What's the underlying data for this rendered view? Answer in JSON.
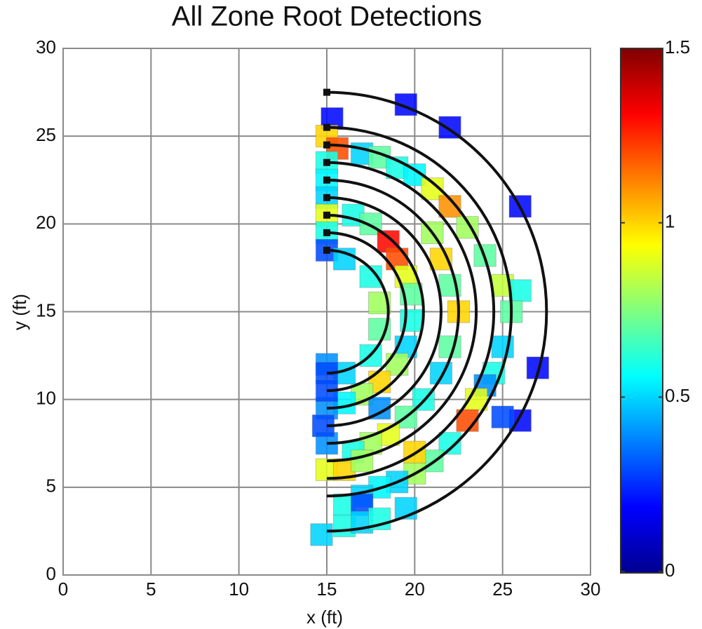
{
  "chart_data": {
    "type": "heatmap",
    "title": "All Zone Root Detections",
    "xlabel": "x (ft)",
    "ylabel": "y (ft)",
    "xlim": [
      0,
      30
    ],
    "xticks": [
      0,
      5,
      10,
      15,
      20,
      25,
      30
    ],
    "ylim": [
      0,
      30
    ],
    "yticks": [
      0,
      5,
      10,
      15,
      20,
      25,
      30
    ],
    "grid": true,
    "colorbar": {
      "lim": [
        0,
        1.5
      ],
      "ticks": [
        0,
        0.5,
        1,
        1.5
      ],
      "colormap": "jet"
    },
    "arcs": {
      "center": [
        15,
        15
      ],
      "radii": [
        3.5,
        4.5,
        5.5,
        6.5,
        7.5,
        8.5,
        9.5,
        10.5,
        12.5
      ],
      "color": "#111111"
    },
    "cells": [
      [
        15.3,
        26,
        0.2
      ],
      [
        19.5,
        26.8,
        0.2
      ],
      [
        22,
        25.5,
        0.2
      ],
      [
        26,
        21,
        0.2
      ],
      [
        27,
        11.8,
        0.2
      ],
      [
        26,
        8.8,
        0.2
      ],
      [
        15,
        25,
        1.0
      ],
      [
        15.6,
        24.3,
        1.2
      ],
      [
        15,
        23.5,
        0.6
      ],
      [
        15,
        22.5,
        0.55
      ],
      [
        15,
        21.5,
        0.5
      ],
      [
        15,
        20.5,
        0.9
      ],
      [
        15,
        19.5,
        0.6
      ],
      [
        15,
        18.5,
        0.3
      ],
      [
        17,
        24,
        0.5
      ],
      [
        18,
        23.8,
        0.7
      ],
      [
        19,
        23.2,
        0.6
      ],
      [
        20,
        22.8,
        0.55
      ],
      [
        21,
        22,
        0.9
      ],
      [
        22,
        21,
        1.1
      ],
      [
        23,
        19.8,
        0.8
      ],
      [
        24,
        18.2,
        0.7
      ],
      [
        25,
        16.5,
        0.85
      ],
      [
        26,
        16.2,
        0.6
      ],
      [
        25.5,
        15,
        0.7
      ],
      [
        25,
        13,
        0.5
      ],
      [
        24.5,
        11.5,
        0.6
      ],
      [
        24,
        10.8,
        0.4
      ],
      [
        23.5,
        10,
        0.9
      ],
      [
        23,
        8.8,
        1.2
      ],
      [
        25,
        9,
        0.3
      ],
      [
        22,
        7.5,
        0.6
      ],
      [
        21,
        6.5,
        0.7
      ],
      [
        20,
        5.8,
        0.8
      ],
      [
        19,
        5.3,
        0.5
      ],
      [
        18,
        5,
        0.55
      ],
      [
        17,
        4.5,
        0.5
      ],
      [
        16,
        4,
        0.6
      ],
      [
        17,
        4,
        0.3
      ],
      [
        16.5,
        20.5,
        0.6
      ],
      [
        17.5,
        20,
        0.7
      ],
      [
        18.5,
        19,
        1.3
      ],
      [
        19,
        18,
        1.2
      ],
      [
        19.5,
        17,
        0.9
      ],
      [
        19.8,
        16,
        0.7
      ],
      [
        19.8,
        14.5,
        0.6
      ],
      [
        19.5,
        13,
        0.5
      ],
      [
        19,
        12,
        0.8
      ],
      [
        18,
        11,
        1.0
      ],
      [
        17,
        10.3,
        0.8
      ],
      [
        16,
        9.8,
        0.55
      ],
      [
        15,
        9.5,
        0.4
      ],
      [
        16,
        18,
        0.5
      ],
      [
        17.5,
        17,
        0.6
      ],
      [
        18,
        15.5,
        0.8
      ],
      [
        18,
        14,
        0.7
      ],
      [
        17.5,
        12.5,
        0.6
      ],
      [
        16,
        11.5,
        0.5
      ],
      [
        15,
        12,
        0.4
      ],
      [
        15,
        11.5,
        0.3
      ],
      [
        15,
        10.5,
        0.3
      ],
      [
        21,
        19.5,
        0.8
      ],
      [
        21.5,
        18,
        1.0
      ],
      [
        22,
        16.5,
        0.7
      ],
      [
        22.5,
        15,
        1.0
      ],
      [
        22,
        13,
        0.7
      ],
      [
        21.5,
        11.5,
        0.5
      ],
      [
        20.5,
        10,
        0.6
      ],
      [
        19.5,
        9,
        0.7
      ],
      [
        18.5,
        8,
        0.9
      ],
      [
        17.5,
        7.5,
        0.8
      ],
      [
        16.5,
        7,
        0.6
      ],
      [
        15,
        7.5,
        0.4
      ],
      [
        14.8,
        8.5,
        0.3
      ],
      [
        18,
        9.5,
        0.4
      ],
      [
        15,
        6,
        0.9
      ],
      [
        16,
        6,
        1.0
      ],
      [
        17,
        6.5,
        0.8
      ],
      [
        20,
        7,
        1.0
      ],
      [
        14.7,
        2.3,
        0.5
      ],
      [
        16,
        2.8,
        0.6
      ],
      [
        17,
        3,
        0.5
      ],
      [
        18,
        3.2,
        0.6
      ],
      [
        19.5,
        3.8,
        0.5
      ]
    ]
  }
}
